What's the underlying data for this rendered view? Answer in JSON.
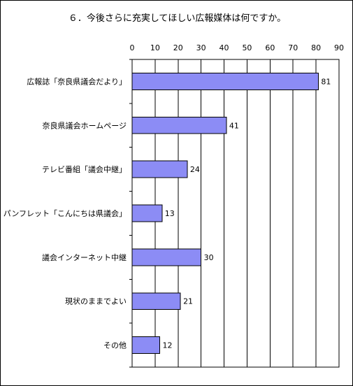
{
  "chart_data": {
    "type": "bar",
    "orientation": "horizontal",
    "title": "６．今後さらに充実してほしい広報媒体は何ですか。",
    "categories": [
      "広報誌「奈良県議会だより」",
      "奈良県議会ホームページ",
      "テレビ番組「議会中継」",
      "パンフレット「こんにちは県議会」",
      "議会インターネット中継",
      "現状のままでよい",
      "その他"
    ],
    "values": [
      81,
      41,
      24,
      13,
      30,
      21,
      12
    ],
    "xlim": [
      0,
      90
    ],
    "xticks": [
      0,
      10,
      20,
      30,
      40,
      50,
      60,
      70,
      80,
      90
    ],
    "xaxis_position": "top",
    "grid": true,
    "data_labels": true,
    "legend": "none",
    "colors": {
      "bar_fill": "#8c8cf5",
      "bar_stroke": "#000000",
      "grid": "#000000"
    }
  }
}
